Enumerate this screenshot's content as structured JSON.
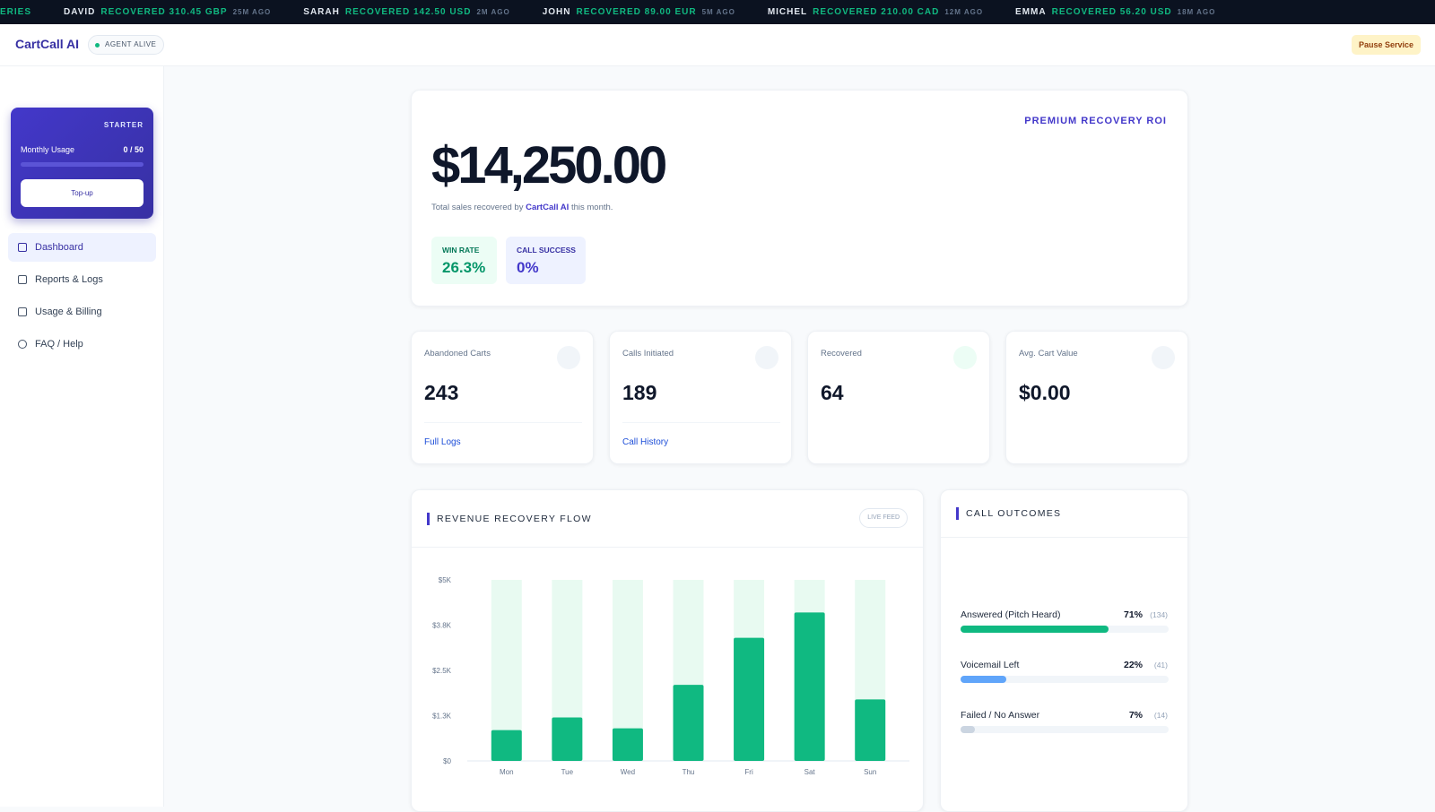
{
  "ticker": {
    "fragment": "ERIES",
    "items": [
      {
        "name": "DAVID",
        "action": "RECOVERED 310.45 GBP",
        "time": "25M AGO"
      },
      {
        "name": "SARAH",
        "action": "RECOVERED 142.50 USD",
        "time": "2M AGO"
      },
      {
        "name": "JOHN",
        "action": "RECOVERED 89.00 EUR",
        "time": "5M AGO"
      },
      {
        "name": "MICHEL",
        "action": "RECOVERED 210.00 CAD",
        "time": "12M AGO"
      },
      {
        "name": "EMMA",
        "action": "RECOVERED 56.20 USD",
        "time": "18M AGO"
      }
    ]
  },
  "header": {
    "brand": "CartCall AI",
    "status": "AGENT ALIVE",
    "button": "Pause Service"
  },
  "sidebar": {
    "plan": {
      "name": "STARTER",
      "usage_label": "Monthly Usage",
      "usage": "0 / 50",
      "button": "Top-up"
    },
    "nav": [
      "Dashboard",
      "Reports & Logs",
      "Usage & Billing",
      "FAQ / Help"
    ]
  },
  "hero": {
    "amount": "$14,250.00",
    "caption_before": "Total sales recovered by",
    "caption_brand": "CartCall AI",
    "caption_after": "this month.",
    "badge": "PREMIUM RECOVERY ROI",
    "metrics": [
      {
        "label": "WIN RATE",
        "value": "26.3%"
      },
      {
        "label": "CALL SUCCESS",
        "value": "0%"
      }
    ]
  },
  "stats": [
    {
      "label": "Abandoned Carts",
      "value": "243",
      "link": "Full Logs"
    },
    {
      "label": "Calls Initiated",
      "value": "189",
      "link": "Call History"
    },
    {
      "label": "Recovered",
      "value": "64"
    },
    {
      "label": "Avg. Cart Value",
      "value": "$0.00"
    }
  ],
  "outcomes": {
    "title": "CALL OUTCOMES",
    "items": [
      {
        "label": "Answered (Pitch Heard)",
        "value": 71,
        "value_label": "71%",
        "count": "(134)",
        "color": "#10b981"
      },
      {
        "label": "Voicemail Left",
        "value": 22,
        "value_label": "22%",
        "count": "(41)",
        "color": "#60a5fa"
      },
      {
        "label": "Failed / No Answer",
        "value": 7,
        "value_label": "7%",
        "count": "(14)",
        "color": "#cbd5e1"
      }
    ]
  },
  "chart_data": {
    "type": "bar",
    "title": "REVENUE RECOVERY FLOW",
    "badge": "LIVE FEED",
    "categories": [
      "Mon",
      "Tue",
      "Wed",
      "Thu",
      "Fri",
      "Sat",
      "Sun"
    ],
    "values": [
      850,
      1200,
      900,
      2100,
      3400,
      4100,
      1700
    ],
    "color": "#10b981",
    "grid": false,
    "ylim": [
      0,
      5000
    ],
    "yticks": [
      {
        "value": 0,
        "label": "$0"
      },
      {
        "value": 1250,
        "label": "$1.3K"
      },
      {
        "value": 2500,
        "label": "$2.5K"
      },
      {
        "value": 3750,
        "label": "$3.8K"
      },
      {
        "value": 5000,
        "label": "$5K"
      }
    ]
  }
}
